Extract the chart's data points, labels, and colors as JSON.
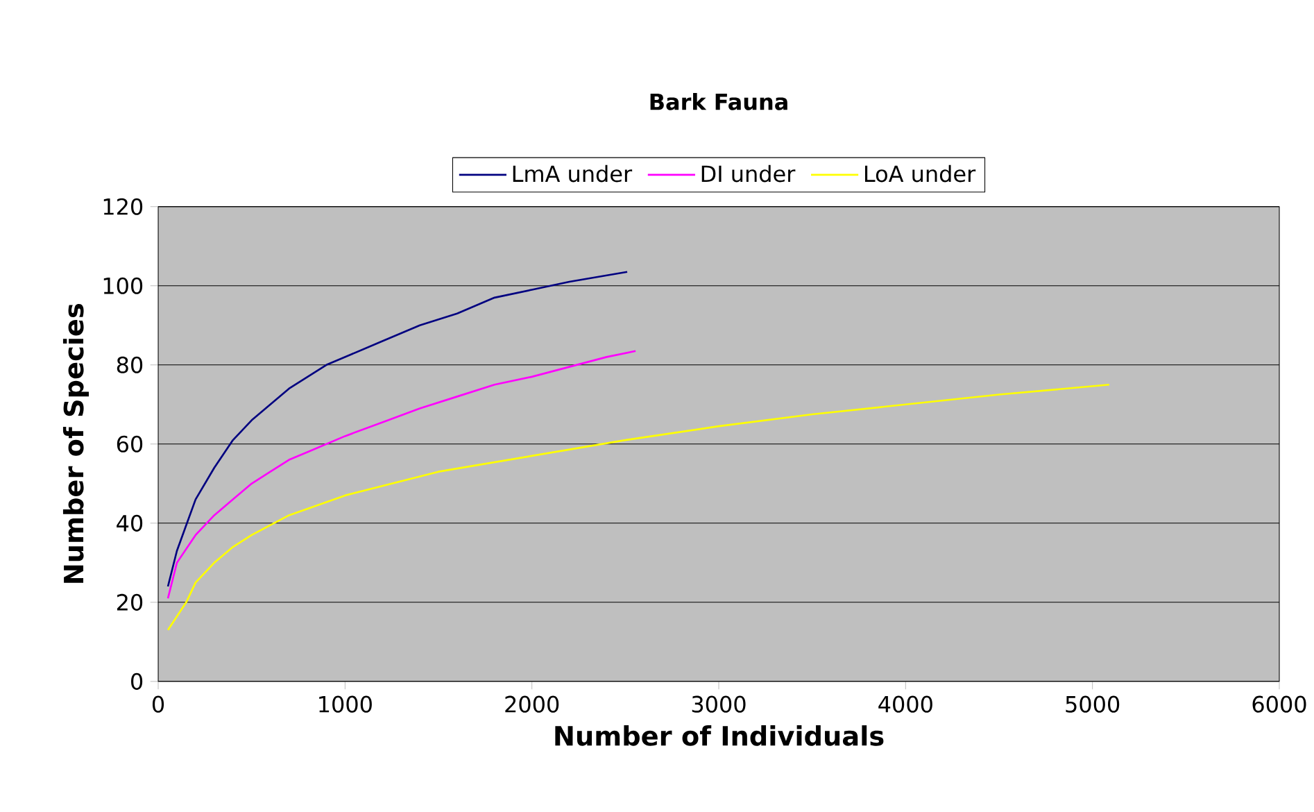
{
  "chart_data": {
    "type": "line",
    "title": "Bark Fauna",
    "xlabel": "Number of Individuals",
    "ylabel": "Number of Species",
    "xlim": [
      0,
      6000
    ],
    "xticks": [
      0,
      1000,
      2000,
      3000,
      4000,
      5000,
      6000
    ],
    "ylim": [
      0,
      120
    ],
    "yticks": [
      0,
      20,
      40,
      60,
      80,
      100,
      120
    ],
    "grid": "y",
    "legend": "top",
    "marker": "none",
    "line_style": "solid",
    "series": [
      {
        "name": "LmA under",
        "color": "#000080",
        "x": [
          52,
          100,
          200,
          300,
          400,
          500,
          600,
          700,
          800,
          900,
          1000,
          1200,
          1400,
          1600,
          1800,
          2000,
          2200,
          2510
        ],
        "values": [
          24,
          33,
          46,
          54,
          61,
          66,
          70,
          74,
          77,
          80,
          82,
          86,
          90,
          93,
          97,
          99,
          101,
          103.5
        ]
      },
      {
        "name": "DI under",
        "color": "#ff00ff",
        "x": [
          52,
          100,
          200,
          300,
          400,
          500,
          600,
          700,
          800,
          1000,
          1200,
          1400,
          1600,
          1800,
          2000,
          2200,
          2400,
          2555
        ],
        "values": [
          21,
          30,
          37,
          42,
          46,
          50,
          53,
          56,
          58,
          62,
          65.5,
          69,
          72,
          75,
          77,
          79.5,
          82,
          83.5
        ]
      },
      {
        "name": "LoA under",
        "color": "#ffff00",
        "x": [
          52,
          150,
          200,
          300,
          400,
          500,
          700,
          1000,
          1500,
          2000,
          2500,
          3000,
          3500,
          4000,
          4500,
          5090
        ],
        "values": [
          13,
          20,
          25,
          30,
          34,
          37,
          42,
          47,
          53,
          57,
          61,
          64.5,
          67.5,
          70,
          72.5,
          75
        ]
      }
    ]
  }
}
